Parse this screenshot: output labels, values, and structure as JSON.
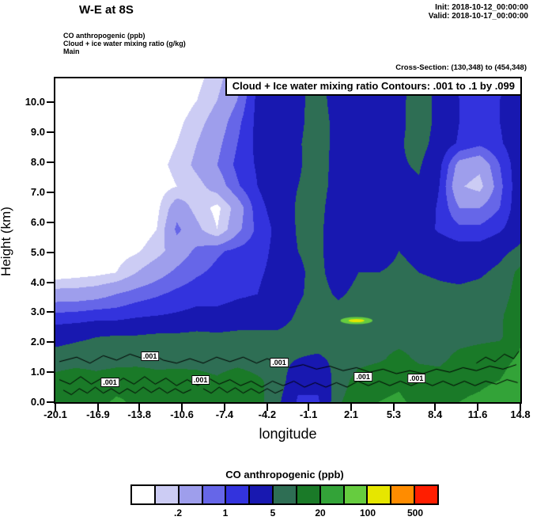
{
  "header": {
    "title": "W-E at 8S",
    "init_line": "Init: 2018-10-12_00:00:00",
    "valid_line": "Valid: 2018-10-17_00:00:00",
    "field_lines": [
      "CO anthropogenic  (ppb)",
      "Cloud + ice water mixing ratio  (g/kg)",
      "Main"
    ],
    "cross_section": "Cross-Section: (130,348) to (454,348)"
  },
  "chart_data": {
    "type": "heatmap",
    "subtype": "filled-contour-vertical-cross-section",
    "title_box": "Cloud + Ice water mixing ratio Contours: .001 to .1 by .099",
    "xlabel": "longitude",
    "ylabel": "Height (km)",
    "xlim": [
      -20.1,
      14.8
    ],
    "ylim": [
      0,
      10.8
    ],
    "x_tick_labels": [
      "-20.1",
      "-16.9",
      "-13.8",
      "-10.6",
      "-7.4",
      "-4.2",
      "-1.1",
      "2.1",
      "5.3",
      "8.4",
      "11.6",
      "14.8"
    ],
    "x_tick_values": [
      -20.1,
      -16.9,
      -13.8,
      -10.6,
      -7.4,
      -4.2,
      -1.1,
      2.1,
      5.3,
      8.4,
      11.6,
      14.8
    ],
    "y_tick_labels": [
      "0.0",
      "1.0",
      "2.0",
      "3.0",
      "4.0",
      "5.0",
      "6.0",
      "7.0",
      "8.0",
      "9.0",
      "10.0"
    ],
    "y_tick_values": [
      0,
      1,
      2,
      3,
      4,
      5,
      6,
      7,
      8,
      9,
      10
    ],
    "fill_field": {
      "name": "CO anthropogenic",
      "units": "ppb",
      "levels": [
        0.1,
        0.2,
        0.5,
        1,
        2,
        5,
        10,
        20,
        50,
        100,
        200,
        500
      ],
      "palette": [
        "#ffffff",
        "#ccccf4",
        "#9e9eec",
        "#6666e8",
        "#3333dd",
        "#1818b0",
        "#2e6e54",
        "#1a7a28",
        "#33a338",
        "#66cc3f",
        "#e6e600",
        "#ff8c00",
        "#ff1e00"
      ],
      "grid_lons": [
        -20.1,
        -18.58,
        -17.07,
        -15.55,
        -14.03,
        -12.52,
        -11.0,
        -9.48,
        -7.97,
        -6.45,
        -4.93,
        -3.42,
        -1.9,
        -0.38,
        1.13,
        2.65,
        4.17,
        5.68,
        7.2,
        8.72,
        10.23,
        11.75,
        13.27,
        14.8
      ],
      "grid_heights_km": [
        10.8,
        10.08,
        9.36,
        8.64,
        7.92,
        7.2,
        6.48,
        5.76,
        5.04,
        4.32,
        3.6,
        2.88,
        2.16,
        1.44,
        0.72,
        0
      ],
      "values_ppb": [
        [
          0.05,
          0.05,
          0.05,
          0.05,
          0.05,
          0.05,
          0.05,
          0.08,
          0.15,
          0.4,
          1.8,
          3.5,
          4,
          7,
          3,
          4,
          2,
          3.5,
          7,
          3.5,
          1.8,
          1.5,
          1.8,
          1.8
        ],
        [
          0.05,
          0.05,
          0.05,
          0.05,
          0.05,
          0.05,
          0.06,
          0.1,
          0.2,
          0.5,
          2.5,
          4,
          4,
          7.5,
          3,
          4,
          2.2,
          4,
          7.5,
          4,
          2,
          1.5,
          2,
          3
        ],
        [
          0.05,
          0.05,
          0.05,
          0.05,
          0.05,
          0.06,
          0.08,
          0.15,
          0.3,
          0.8,
          2.5,
          4,
          4,
          8,
          3.5,
          4.5,
          2.5,
          4,
          7.5,
          4,
          2,
          1.6,
          2,
          3.5
        ],
        [
          0.05,
          0.05,
          0.05,
          0.05,
          0.05,
          0.07,
          0.1,
          0.2,
          0.4,
          1,
          2.5,
          4,
          4.5,
          8,
          3.5,
          4.5,
          3,
          4.5,
          7,
          3.5,
          1.8,
          1.2,
          1.8,
          3.5
        ],
        [
          0.05,
          0.05,
          0.05,
          0.05,
          0.06,
          0.08,
          0.12,
          0.25,
          0.5,
          1.2,
          2.2,
          3.8,
          4.5,
          7.5,
          3.5,
          4.5,
          3.5,
          4.5,
          5.5,
          2.5,
          0.35,
          0.25,
          1,
          3.5
        ],
        [
          0.05,
          0.05,
          0.05,
          0.05,
          0.05,
          0.07,
          0.1,
          0.15,
          0.3,
          0.9,
          2,
          3.5,
          5,
          7,
          3.5,
          4.5,
          3,
          4,
          4.5,
          2,
          0.22,
          0.15,
          0.8,
          3.5
        ],
        [
          0.05,
          0.05,
          0.05,
          0.05,
          0.06,
          0.08,
          0.35,
          0.15,
          0.08,
          0.3,
          1.5,
          3,
          5.5,
          6.5,
          3,
          4.5,
          2.5,
          3.5,
          3.5,
          1.8,
          0.5,
          0.5,
          1,
          3.5
        ],
        [
          0.05,
          0.05,
          0.05,
          0.05,
          0.06,
          0.1,
          0.6,
          0.25,
          0.1,
          0.4,
          1.2,
          2.5,
          5.5,
          6,
          3,
          4,
          2.2,
          3,
          3,
          1.8,
          1.2,
          1.2,
          1.8,
          3.5
        ],
        [
          0.05,
          0.05,
          0.06,
          0.07,
          0.09,
          0.15,
          0.3,
          0.6,
          0.9,
          1.2,
          1.5,
          2.5,
          5,
          6,
          3,
          4.5,
          4,
          5,
          4.5,
          3.5,
          3,
          3,
          4,
          6
        ],
        [
          0.06,
          0.07,
          0.08,
          0.1,
          0.2,
          0.35,
          0.6,
          0.9,
          1.2,
          1.5,
          1.8,
          2.5,
          4.5,
          6,
          3.5,
          5,
          5,
          5.5,
          5,
          4.5,
          4,
          4.5,
          6,
          12
        ],
        [
          0.3,
          0.3,
          0.35,
          0.5,
          0.7,
          0.9,
          1.2,
          1.5,
          1.5,
          1.8,
          2,
          2.8,
          4.5,
          6.5,
          4.5,
          6,
          6,
          6.5,
          6.5,
          6,
          6,
          6.5,
          7,
          14
        ],
        [
          1.2,
          1.3,
          1.5,
          1.5,
          1.8,
          2,
          2.2,
          2.5,
          2.5,
          2.8,
          3,
          3.5,
          5.5,
          7,
          6.5,
          7.5,
          7.5,
          8,
          8,
          7.5,
          7.5,
          8,
          9,
          16
        ],
        [
          4,
          4.5,
          5,
          5.5,
          5.5,
          6,
          6,
          6.5,
          6,
          6.5,
          6.5,
          6,
          6.5,
          7,
          7,
          7.5,
          8,
          8,
          8,
          7.5,
          8,
          8.5,
          9,
          18
        ],
        [
          6.5,
          7,
          7,
          7.5,
          7,
          7.5,
          7,
          7.5,
          7,
          7.5,
          7,
          6.5,
          5,
          4.5,
          6,
          8,
          9,
          12,
          9,
          8.5,
          12,
          14,
          16,
          22
        ],
        [
          13,
          16,
          13,
          15,
          18,
          13,
          15,
          13,
          11,
          15,
          11,
          8,
          2.5,
          2.5,
          7,
          13,
          16,
          18,
          14,
          13,
          17,
          18,
          20,
          28
        ],
        [
          16,
          20,
          16,
          22,
          18,
          15,
          20,
          16,
          14,
          20,
          13,
          6,
          1.8,
          1.8,
          9,
          16,
          20,
          22,
          17,
          15,
          20,
          22,
          26,
          40
        ]
      ]
    },
    "highlights": [
      {
        "lon": 2.5,
        "h": 2.72,
        "rx_lon": 1.2,
        "ry_km": 0.12,
        "color": "#66cc3f"
      },
      {
        "lon": 2.5,
        "h": 2.72,
        "rx_lon": 0.6,
        "ry_km": 0.055,
        "color": "#e6e600"
      }
    ],
    "cloud_contours": {
      "contour_values": [
        0.001,
        0.1
      ],
      "labels": [
        {
          "text": ".001",
          "lon": -16.0,
          "h": 0.65
        },
        {
          "text": ".001",
          "lon": -13.0,
          "h": 1.52
        },
        {
          "text": ".001",
          "lon": -9.2,
          "h": 0.73
        },
        {
          "text": ".001",
          "lon": -3.3,
          "h": 1.31
        },
        {
          "text": ".001",
          "lon": 3.0,
          "h": 0.84
        },
        {
          "text": ".001",
          "lon": 7.0,
          "h": 0.79
        }
      ],
      "lines": [
        [
          [
            -19.8,
            1.35
          ],
          [
            -18.5,
            1.5
          ],
          [
            -17.5,
            1.3
          ],
          [
            -16.5,
            1.55
          ],
          [
            -15.5,
            1.4
          ],
          [
            -14.5,
            1.6
          ],
          [
            -13.5,
            1.45
          ],
          [
            -12.8,
            1.6
          ],
          [
            -12,
            1.4
          ],
          [
            -11,
            1.3
          ],
          [
            -10,
            1.45
          ],
          [
            -9,
            1.3
          ],
          [
            -8,
            1.5
          ],
          [
            -7,
            1.35
          ],
          [
            -6,
            1.5
          ],
          [
            -5,
            1.3
          ],
          [
            -4.2,
            1.45
          ],
          [
            -3.3,
            1.3
          ],
          [
            -2.5,
            1.15
          ],
          [
            -1.5,
            1.25
          ],
          [
            -0.5,
            1.1
          ],
          [
            0.5,
            1.2
          ],
          [
            1.5,
            1.05
          ],
          [
            2.5,
            1.15
          ],
          [
            3.5,
            1.0
          ],
          [
            4.5,
            1.1
          ],
          [
            5.5,
            0.95
          ],
          [
            6.5,
            1.05
          ],
          [
            7.5,
            0.95
          ],
          [
            8.5,
            1.1
          ],
          [
            9.5,
            1.0
          ],
          [
            10.5,
            1.15
          ],
          [
            11.5,
            1.05
          ],
          [
            12.5,
            1.2
          ],
          [
            13.5,
            1.1
          ],
          [
            14.5,
            1.25
          ]
        ],
        [
          [
            -19.8,
            0.75
          ],
          [
            -19,
            0.6
          ],
          [
            -18.2,
            0.85
          ],
          [
            -17.4,
            0.6
          ],
          [
            -16.6,
            0.8
          ],
          [
            -15.8,
            0.55
          ],
          [
            -15,
            0.8
          ],
          [
            -14.2,
            0.6
          ],
          [
            -13.4,
            0.85
          ],
          [
            -12.6,
            0.6
          ],
          [
            -11.8,
            0.8
          ],
          [
            -11,
            0.55
          ],
          [
            -10.2,
            0.75
          ],
          [
            -9.4,
            0.55
          ],
          [
            -8.6,
            0.8
          ],
          [
            -7.8,
            0.6
          ],
          [
            -7,
            0.75
          ],
          [
            -6.2,
            0.55
          ],
          [
            -5.4,
            0.7
          ],
          [
            -4.6,
            0.5
          ],
          [
            -3.8,
            0.7
          ],
          [
            -3,
            0.55
          ],
          [
            -2.2,
            0.7
          ],
          [
            -1.4,
            0.5
          ],
          [
            -0.6,
            0.65
          ],
          [
            0.2,
            0.5
          ],
          [
            1,
            0.65
          ],
          [
            1.8,
            0.5
          ],
          [
            2.6,
            0.7
          ],
          [
            3.4,
            0.55
          ],
          [
            4.2,
            0.7
          ],
          [
            5,
            0.55
          ],
          [
            5.8,
            0.7
          ],
          [
            6.6,
            0.55
          ],
          [
            7.4,
            0.7
          ],
          [
            8.2,
            0.55
          ],
          [
            9,
            0.7
          ],
          [
            9.8,
            0.55
          ],
          [
            10.6,
            0.7
          ],
          [
            11.4,
            0.55
          ],
          [
            12.2,
            0.7
          ],
          [
            13,
            0.6
          ],
          [
            13.8,
            0.75
          ],
          [
            14.6,
            0.65
          ]
        ],
        [
          [
            -19.5,
            0.4
          ],
          [
            -18.9,
            0.25
          ],
          [
            -18.3,
            0.45
          ],
          [
            -17.7,
            0.3
          ],
          [
            -17.1,
            0.5
          ],
          [
            -16.5,
            0.3
          ],
          [
            -15.9,
            0.45
          ],
          [
            -15.3,
            0.28
          ],
          [
            -14.7,
            0.45
          ],
          [
            -14.1,
            0.3
          ],
          [
            -13.5,
            0.5
          ],
          [
            -12.9,
            0.32
          ],
          [
            -12.3,
            0.48
          ],
          [
            -11.7,
            0.3
          ],
          [
            -11.1,
            0.45
          ],
          [
            -10.5,
            0.3
          ],
          [
            -9.9,
            0.42
          ]
        ],
        [
          [
            -9,
            0.45
          ],
          [
            -8.4,
            0.3
          ],
          [
            -7.8,
            0.5
          ],
          [
            -7.2,
            0.32
          ],
          [
            -6.6,
            0.48
          ],
          [
            -6,
            0.3
          ],
          [
            -5.4,
            0.45
          ],
          [
            -4.8,
            0.3
          ],
          [
            -4.2,
            0.45
          ],
          [
            -3.6,
            0.3
          ],
          [
            -3,
            0.42
          ]
        ],
        [
          [
            11.5,
            1.3
          ],
          [
            12.2,
            1.5
          ],
          [
            12.9,
            1.35
          ],
          [
            13.6,
            1.6
          ],
          [
            14.3,
            1.45
          ],
          [
            14.7,
            1.7
          ]
        ]
      ]
    }
  },
  "colorbar": {
    "title": "CO anthropogenic  (ppb)",
    "tick_labels": [
      ".2",
      "1",
      "5",
      "20",
      "100",
      "500"
    ],
    "tick_cell_positions": [
      2,
      4,
      6,
      8,
      10,
      12
    ]
  }
}
